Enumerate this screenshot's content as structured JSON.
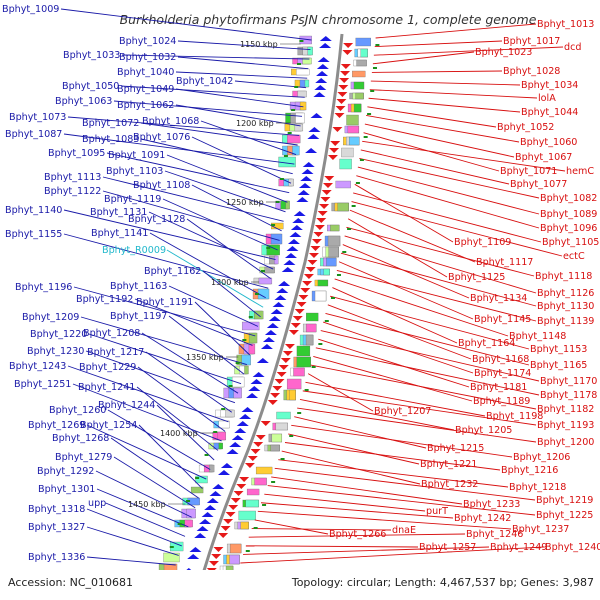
{
  "title": "Burkholderia phytofirmans PsJN chromosome 1, complete genome",
  "footer": {
    "accession": "Accession: NC_010681",
    "summary": "Topology: circular; Length: 4,467,537 bp; Genes: 3,987"
  },
  "colors": {
    "left_label": "#1a1aa8",
    "rna_label": "#22b8cc",
    "right_label": "#d81010",
    "left_arrow": "#1919e6",
    "right_arrow": "#e61919",
    "backbone": "#8c8c8c",
    "tick": "#1a8f1a"
  },
  "scale_marks": [
    "1150 kbp",
    "1200 kbp",
    "1250 kbp",
    "1300 kbp",
    "1350 kbp",
    "1400 kbp",
    "1450 kbp"
  ],
  "left_labels": [
    "Bphyt_1009",
    "Bphyt_1024",
    "Bphyt_1033",
    "Bphyt_1032",
    "Bphyt_1040",
    "Bphyt_1042",
    "Bphyt_1050",
    "Bphyt_1049",
    "Bphyt_1063",
    "Bphyt_1062",
    "Bphyt_1073",
    "Bphyt_1072",
    "Bphyt_1068",
    "Bphyt_1087",
    "Bphyt_1083",
    "Bphyt_1076",
    "Bphyt_1095",
    "Bphyt_1091",
    "Bphyt_1103",
    "Bphyt_1113",
    "Bphyt_1108",
    "Bphyt_1122",
    "Bphyt_1119",
    "Bphyt_1140",
    "Bphyt_1131",
    "Bphyt_1128",
    "Bphyt_1155",
    "Bphyt_1141",
    "Bphyt_R0009",
    "Bphyt_1162",
    "Bphyt_1163",
    "Bphyt_1196",
    "Bphyt_1192",
    "Bphyt_1191",
    "Bphyt_1209",
    "Bphyt_1197",
    "Bphyt_1220",
    "Bphyt_1208",
    "Bphyt_1230",
    "Bphyt_1217",
    "Bphyt_1243",
    "Bphyt_1229",
    "Bphyt_1251",
    "Bphyt_1241",
    "Bphyt_1244",
    "Bphyt_1260",
    "Bphyt_1269",
    "Bphyt_1254",
    "Bphyt_1268",
    "Bphyt_1279",
    "Bphyt_1292",
    "Bphyt_1301",
    "upp",
    "Bphyt_1318",
    "Bphyt_1327",
    "Bphyt_1336"
  ],
  "right_labels": [
    "Bphyt_1013",
    "Bphyt_1017",
    "dcd",
    "Bphyt_1023",
    "Bphyt_1028",
    "Bphyt_1034",
    "lolA",
    "Bphyt_1044",
    "Bphyt_1052",
    "Bphyt_1060",
    "Bphyt_1067",
    "Bphyt_1071",
    "hemC",
    "Bphyt_1077",
    "Bphyt_1082",
    "Bphyt_1089",
    "Bphyt_1096",
    "Bphyt_1109",
    "Bphyt_1105",
    "ectC",
    "Bphyt_1117",
    "Bphyt_1125",
    "Bphyt_1118",
    "Bphyt_1126",
    "Bphyt_1134",
    "Bphyt_1130",
    "Bphyt_1145",
    "Bphyt_1139",
    "Bphyt_1148",
    "Bphyt_1164",
    "Bphyt_1153",
    "Bphyt_1168",
    "Bphyt_1165",
    "Bphyt_1174",
    "Bphyt_1170",
    "Bphyt_1181",
    "Bphyt_1178",
    "Bphyt_1189",
    "Bphyt_1182",
    "Bphyt_1207",
    "Bphyt_1198",
    "Bphyt_1193",
    "Bphyt_1205",
    "Bphyt_1200",
    "Bphyt_1215",
    "Bphyt_1206",
    "Bphyt_1221",
    "Bphyt_1216",
    "Bphyt_1232",
    "Bphyt_1218",
    "Bphyt_1219",
    "Bphyt_1233",
    "Bphyt_1225",
    "purT",
    "Bphyt_1242",
    "Bphyt_1237",
    "Bphyt_1266",
    "dnaE",
    "Bphyt_1246",
    "Bphyt_1257",
    "Bphyt_1249",
    "Bphyt_1240"
  ]
}
